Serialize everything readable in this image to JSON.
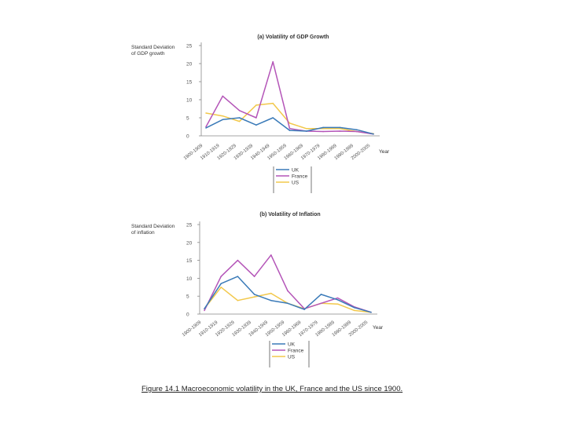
{
  "colors": {
    "uk": "#3a7ab8",
    "france": "#b455b8",
    "us": "#f2c84b",
    "axis": "#888888",
    "text": "#333333"
  },
  "caption": "Figure 14.1 Macroeconomic volatility in the UK, France and the US since 1900.",
  "chart_data": [
    {
      "type": "line",
      "title": "(a) Volatility of GDP Growth",
      "ylabel": [
        "Standard Deviation",
        "of GDP growth"
      ],
      "xlabel": "Year",
      "ylim": [
        0,
        25
      ],
      "yticks": [
        0,
        5,
        10,
        15,
        20,
        25
      ],
      "categories": [
        "1900-1909",
        "1910-1919",
        "1920-1929",
        "1930-1939",
        "1940-1949",
        "1950-1959",
        "1960-1969",
        "1970-1979",
        "1980-1989",
        "1990-1999",
        "2000-2005"
      ],
      "series": [
        {
          "name": "UK",
          "color_key": "uk",
          "values": [
            2.2,
            4.5,
            5.0,
            3.0,
            5.0,
            1.5,
            1.3,
            2.3,
            2.3,
            1.7,
            0.5
          ]
        },
        {
          "name": "France",
          "color_key": "france",
          "values": [
            2.5,
            11.0,
            7.0,
            5.0,
            20.5,
            2.0,
            1.3,
            1.2,
            1.3,
            1.2,
            0.5
          ]
        },
        {
          "name": "US",
          "color_key": "us",
          "values": [
            6.3,
            5.5,
            4.0,
            8.5,
            9.0,
            3.5,
            2.0,
            2.0,
            2.0,
            1.2,
            0.6
          ]
        }
      ]
    },
    {
      "type": "line",
      "title": "(b) Volatility of Inflation",
      "ylabel": [
        "Standard Deviation",
        "of inflation"
      ],
      "xlabel": "Year",
      "ylim": [
        0,
        25
      ],
      "yticks": [
        0,
        5,
        10,
        15,
        20,
        25
      ],
      "categories": [
        "1900-1909",
        "1910-1919",
        "1920-1929",
        "1930-1939",
        "1940-1949",
        "1950-1959",
        "1960-1969",
        "1970-1979",
        "1980-1989",
        "1990-1999",
        "2000-2005"
      ],
      "series": [
        {
          "name": "UK",
          "color_key": "uk",
          "values": [
            1.5,
            8.5,
            10.5,
            5.5,
            3.8,
            3.0,
            1.3,
            5.5,
            4.0,
            1.8,
            0.5
          ]
        },
        {
          "name": "France",
          "color_key": "france",
          "values": [
            1.0,
            10.5,
            15.0,
            10.5,
            16.5,
            6.5,
            1.5,
            3.0,
            4.5,
            2.0,
            0.5
          ]
        },
        {
          "name": "US",
          "color_key": "us",
          "values": [
            1.5,
            7.5,
            3.8,
            4.8,
            5.8,
            3.0,
            1.5,
            3.0,
            2.8,
            1.0,
            0.5
          ]
        }
      ]
    }
  ]
}
